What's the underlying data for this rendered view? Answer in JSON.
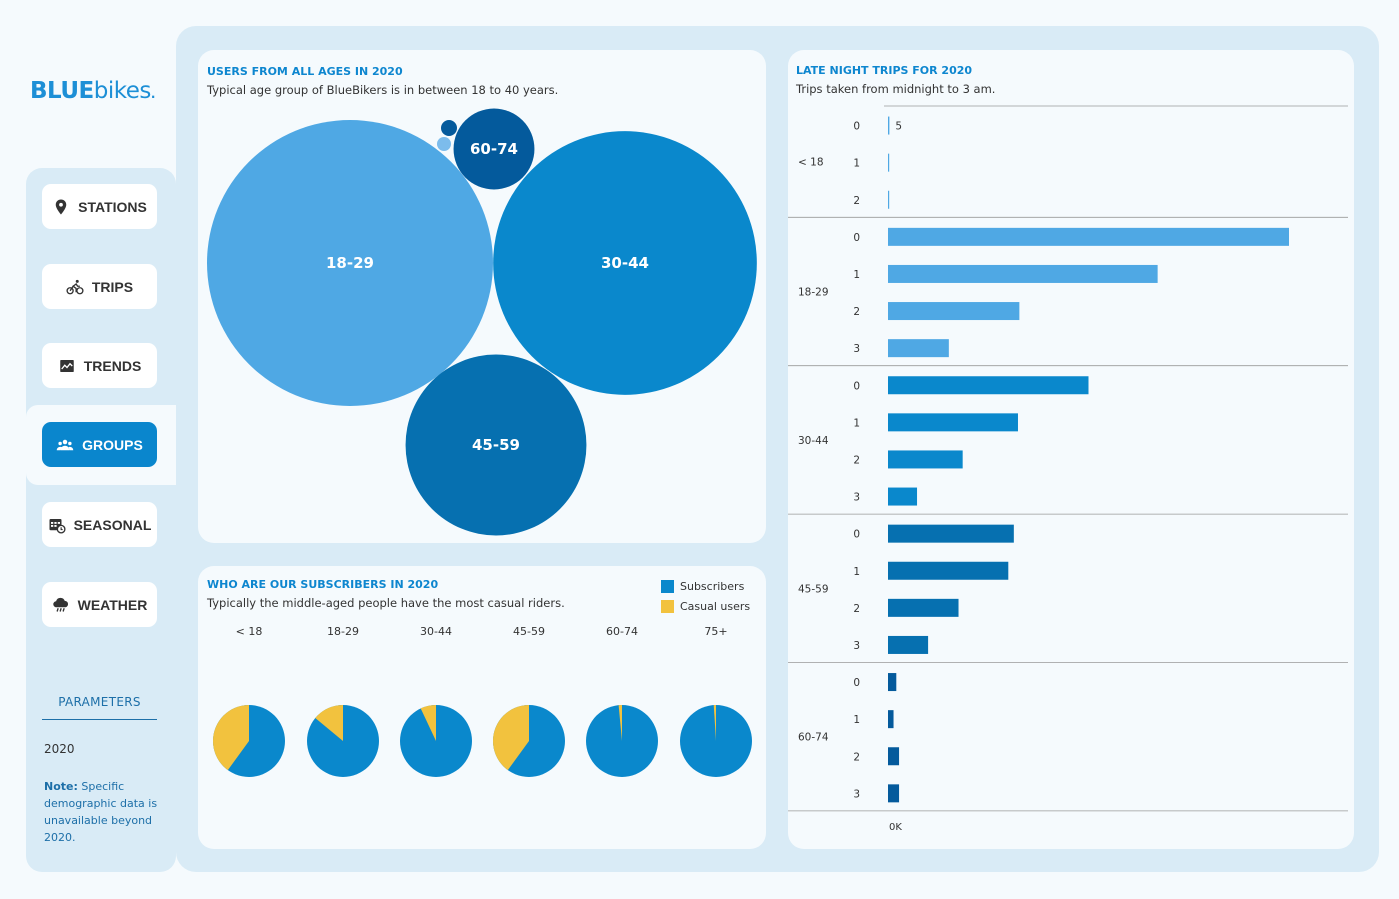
{
  "brand": {
    "blue": "BLUE",
    "bikes": "bikes",
    "mark": "."
  },
  "nav": [
    {
      "id": "stations",
      "label": "STATIONS",
      "icon": "map-pin-icon",
      "active": false
    },
    {
      "id": "trips",
      "label": "TRIPS",
      "icon": "cyclist-icon",
      "active": false
    },
    {
      "id": "trends",
      "label": "TRENDS",
      "icon": "chart-trend-icon",
      "active": false
    },
    {
      "id": "groups",
      "label": "GROUPS",
      "icon": "users-icon",
      "active": true
    },
    {
      "id": "seasonal",
      "label": "SEASONAL",
      "icon": "calendar-clock-icon",
      "active": false
    },
    {
      "id": "weather",
      "label": "WEATHER",
      "icon": "rain-cloud-icon",
      "active": false
    }
  ],
  "parameters": {
    "label": "PARAMETERS",
    "year": "2020",
    "note_bold": "Note:",
    "note_text": " Specific demographic data is unavailable beyond 2020."
  },
  "colors": {
    "accent": "#0a86cd",
    "light_blue": "#4fa8e4",
    "mid_blue": "#0a88cc",
    "dark_blue": "#0670b0",
    "darker_blue": "#045a9c",
    "subscribers": "#0a88cc",
    "casual": "#f2c23e"
  },
  "bubbles": {
    "title": "USERS FROM ALL AGES IN 2020",
    "subtitle": "Typical age group of BlueBikers is in between 18 to 40 years."
  },
  "pies": {
    "title": "WHO ARE OUR SUBSCRIBERS IN 2020",
    "subtitle": "Typically the middle-aged people have the most casual riders.",
    "legend": [
      {
        "label": "Subscribers",
        "color": "#0a88cc"
      },
      {
        "label": "Casual users",
        "color": "#f2c23e"
      }
    ]
  },
  "late": {
    "title": "LATE NIGHT TRIPS FOR 2020",
    "subtitle": "Trips taken from midnight to 3 am."
  },
  "chart_data": [
    {
      "type": "bubble",
      "title": "USERS FROM ALL AGES IN 2020",
      "subtitle": "Typical age group of BlueBikers is in between 18 to 40 years.",
      "items": [
        {
          "label": "18-29",
          "relative_size": 1.0,
          "color": "#4fa8e4",
          "labeled": true
        },
        {
          "label": "30-44",
          "relative_size": 0.85,
          "color": "#0a88cc",
          "labeled": true
        },
        {
          "label": "45-59",
          "relative_size": 0.4,
          "color": "#0670b0",
          "labeled": true
        },
        {
          "label": "60-74",
          "relative_size": 0.08,
          "color": "#045a9c",
          "labeled": true
        },
        {
          "label": "",
          "relative_size": 0.003,
          "color": "#045a9c",
          "labeled": false
        },
        {
          "label": "",
          "relative_size": 0.002,
          "color": "#7cbcec",
          "labeled": false
        }
      ]
    },
    {
      "type": "pie",
      "title": "WHO ARE OUR SUBSCRIBERS IN 2020",
      "subtitle": "Typically the middle-aged people have the most casual riders.",
      "series_names": [
        "Subscribers",
        "Casual users"
      ],
      "categories": [
        "< 18",
        "18-29",
        "30-44",
        "45-59",
        "60-74",
        "75+"
      ],
      "subscribers_share": [
        0.6,
        0.86,
        0.93,
        0.6,
        0.985,
        0.99
      ],
      "casual_share": [
        0.4,
        0.14,
        0.07,
        0.4,
        0.015,
        0.01
      ],
      "legend_position": "top-right"
    },
    {
      "type": "bar",
      "orientation": "horizontal",
      "title": "LATE NIGHT TRIPS FOR 2020",
      "subtitle": "Trips taken from midnight to 3 am.",
      "x_tick_labels": [
        "0K"
      ],
      "groups": [
        {
          "age": "< 18",
          "color": "#4fa8e4",
          "hours": [
            "0",
            "1",
            "2"
          ],
          "values": [
            5,
            1,
            1
          ],
          "value_labels": [
            "5",
            "",
            ""
          ]
        },
        {
          "age": "18-29",
          "color": "#4fa8e4",
          "hours": [
            "0",
            "1",
            "2",
            "3"
          ],
          "values": [
            1450,
            975,
            475,
            220
          ],
          "value_labels": [
            "",
            "",
            "",
            ""
          ]
        },
        {
          "age": "30-44",
          "color": "#0a88cc",
          "hours": [
            "0",
            "1",
            "2",
            "3"
          ],
          "values": [
            725,
            470,
            270,
            105
          ],
          "value_labels": [
            "",
            "",
            "",
            ""
          ]
        },
        {
          "age": "45-59",
          "color": "#0670b0",
          "hours": [
            "0",
            "1",
            "2",
            "3"
          ],
          "values": [
            455,
            435,
            255,
            145
          ],
          "value_labels": [
            "",
            "",
            "",
            ""
          ]
        },
        {
          "age": "60-74",
          "color": "#045a9c",
          "hours": [
            "0",
            "1",
            "2",
            "3"
          ],
          "values": [
            30,
            20,
            40,
            40
          ],
          "value_labels": [
            "",
            "",
            "",
            ""
          ]
        }
      ]
    }
  ]
}
